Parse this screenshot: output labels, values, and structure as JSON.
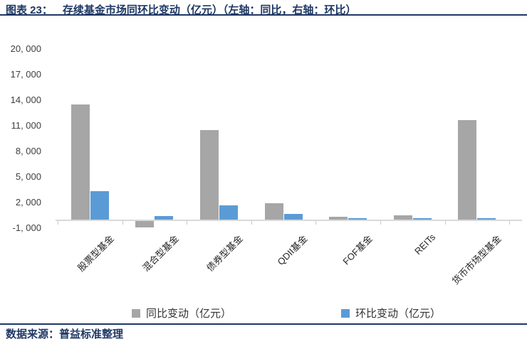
{
  "header": {
    "figure_label": "图表 23：",
    "title": "存续基金市场同环比变动（亿元）（左轴：同比，右轴：环比）"
  },
  "footer": {
    "source": "数据来源：普益标准整理"
  },
  "colors": {
    "accent_navy": "#1F3864",
    "series_yoy_gray": "#A6A6A6",
    "series_mom_blue": "#5B9BD5",
    "axis_line": "#D9D9D9"
  },
  "chart_data": {
    "type": "bar",
    "title": "存续基金市场同环比变动（亿元）",
    "axis_note": "左轴：同比，右轴：环比",
    "grid": false,
    "legend_position": "bottom",
    "categories": [
      "股票型基金",
      "混合型基金",
      "债券型基金",
      "QDII基金",
      "FOF基金",
      "REITs",
      "货币市场型基金"
    ],
    "series": [
      {
        "name": "同比变动（亿元）",
        "color": "#A6A6A6",
        "values": [
          13500,
          -900,
          10500,
          1900,
          330,
          480,
          11700
        ]
      },
      {
        "name": "环比变动（亿元）",
        "color": "#5B9BD5",
        "values": [
          3350,
          420,
          1700,
          700,
          150,
          150,
          170
        ]
      }
    ],
    "y_axis": {
      "min": -1000,
      "max": 20000,
      "tick_interval": 3000,
      "tick_values": [
        20000,
        17000,
        14000,
        11000,
        8000,
        5000,
        2000,
        -1000
      ],
      "tick_labels": [
        "20, 000",
        "17, 000",
        "14, 000",
        "11, 000",
        "8, 000",
        "5, 000",
        "2, 000",
        "-1, 000"
      ],
      "right_axis_labels_visible": false
    }
  }
}
